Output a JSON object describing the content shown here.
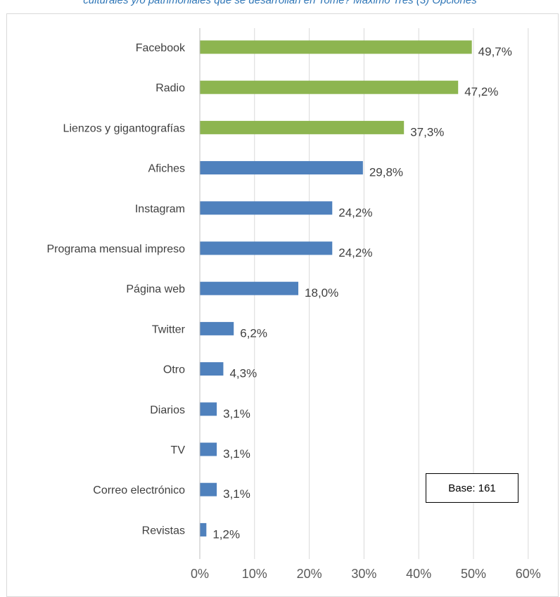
{
  "caption": "culturales y/o patrimoniales que se desarrollan en Tomé? Máximo Tres (3) Opciones",
  "note": "Base: 161",
  "chart_data": {
    "type": "bar",
    "orientation": "horizontal",
    "categories": [
      "Facebook",
      "Radio",
      "Lienzos y gigantografías",
      "Afiches",
      "Instagram",
      "Programa mensual impreso",
      "Página web",
      "Twitter",
      "Otro",
      "Diarios",
      "TV",
      "Correo electrónico",
      "Revistas"
    ],
    "values": [
      49.7,
      47.2,
      37.3,
      29.8,
      24.2,
      24.2,
      18.0,
      6.2,
      4.3,
      3.1,
      3.1,
      3.1,
      1.2
    ],
    "value_labels": [
      "49,7%",
      "47,2%",
      "37,3%",
      "29,8%",
      "24,2%",
      "24,2%",
      "18,0%",
      "6,2%",
      "4,3%",
      "3,1%",
      "3,1%",
      "3,1%",
      "1,2%"
    ],
    "bar_colors": [
      "#8DB550",
      "#8DB550",
      "#8DB550",
      "#4F81BD",
      "#4F81BD",
      "#4F81BD",
      "#4F81BD",
      "#4F81BD",
      "#4F81BD",
      "#4F81BD",
      "#4F81BD",
      "#4F81BD",
      "#4F81BD"
    ],
    "xlim": [
      0,
      60
    ],
    "xticks": [
      0,
      10,
      20,
      30,
      40,
      50,
      60
    ],
    "xtick_labels": [
      "0%",
      "10%",
      "20%",
      "30%",
      "40%",
      "50%",
      "60%"
    ],
    "grid": true,
    "legend": "none"
  }
}
